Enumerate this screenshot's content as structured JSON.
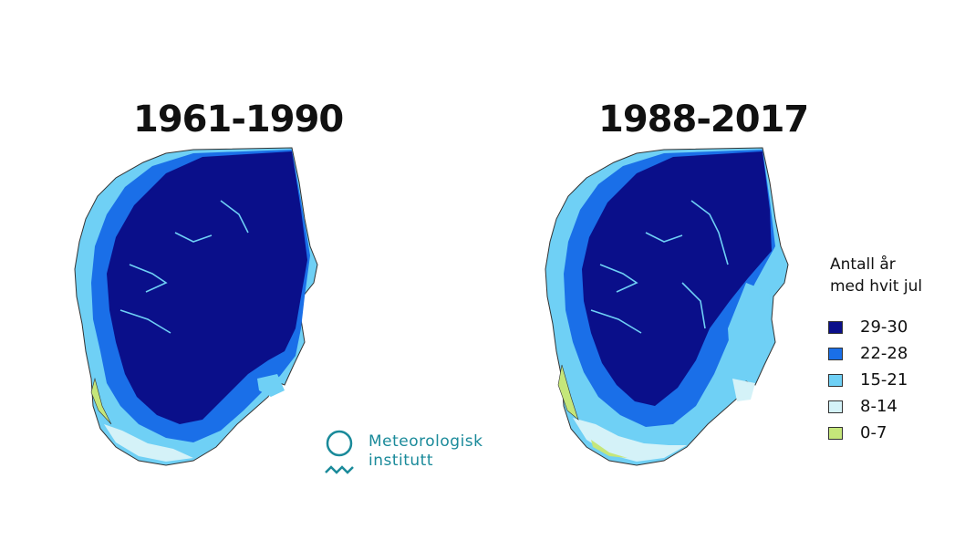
{
  "maps": [
    {
      "period": "1961-1990"
    },
    {
      "period": "1988-2017"
    }
  ],
  "logo": {
    "line1": "Meteorologisk",
    "line2": "institutt",
    "color": "#1a8a9a"
  },
  "legend": {
    "title": "Antall år med hvit jul",
    "items": [
      {
        "label": "29-30",
        "color": "#0a0f8a"
      },
      {
        "label": "22-28",
        "color": "#1a6fe8"
      },
      {
        "label": "15-21",
        "color": "#6fd0f5"
      },
      {
        "label": "8-14",
        "color": "#d4f2f8"
      },
      {
        "label": "0-7",
        "color": "#c5e67a"
      }
    ]
  }
}
